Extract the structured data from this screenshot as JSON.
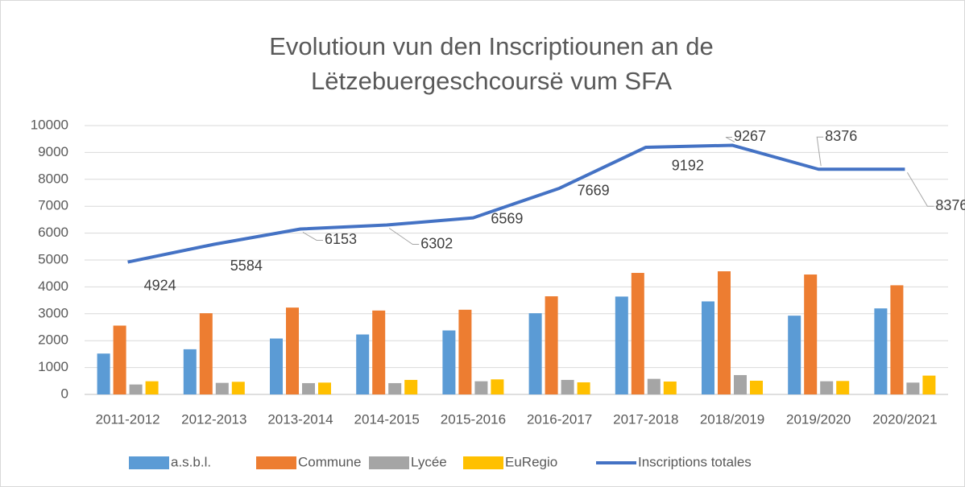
{
  "chart_data": {
    "type": "bar",
    "title": [
      "Evolutioun vun den Inscriptiounen an de",
      "Lëtzebuergeschcoursë vum SFA"
    ],
    "categories": [
      "2011-2012",
      "2012-2013",
      "2013-2014",
      "2014-2015",
      "2015-2016",
      "2016-2017",
      "2017-2018",
      "2018/2019",
      "2019/2020",
      "2020/2021"
    ],
    "series": [
      {
        "name": "a.s.b.l.",
        "color": "#5b9bd5",
        "values": [
          1520,
          1680,
          2080,
          2230,
          2380,
          3020,
          3640,
          3460,
          2930,
          3200
        ]
      },
      {
        "name": "Commune",
        "color": "#ed7d31",
        "values": [
          2560,
          3020,
          3230,
          3120,
          3150,
          3650,
          4520,
          4580,
          4460,
          4060
        ]
      },
      {
        "name": "Lycée",
        "color": "#a5a5a5",
        "values": [
          370,
          430,
          420,
          420,
          490,
          540,
          580,
          720,
          490,
          440
        ]
      },
      {
        "name": "EuRegio",
        "color": "#ffc000",
        "values": [
          490,
          470,
          440,
          540,
          560,
          450,
          480,
          510,
          500,
          700
        ]
      },
      {
        "name": "Inscriptions totales",
        "color": "#4472c4",
        "type": "line",
        "data_labels": true,
        "values": [
          4924,
          5584,
          6153,
          6302,
          6569,
          7669,
          9192,
          9267,
          8376,
          8376
        ]
      }
    ],
    "ylim": [
      0,
      10000
    ],
    "yticks": [
      0,
      1000,
      2000,
      3000,
      4000,
      5000,
      6000,
      7000,
      8000,
      9000,
      10000
    ],
    "grid": true,
    "legend": "bottom"
  }
}
